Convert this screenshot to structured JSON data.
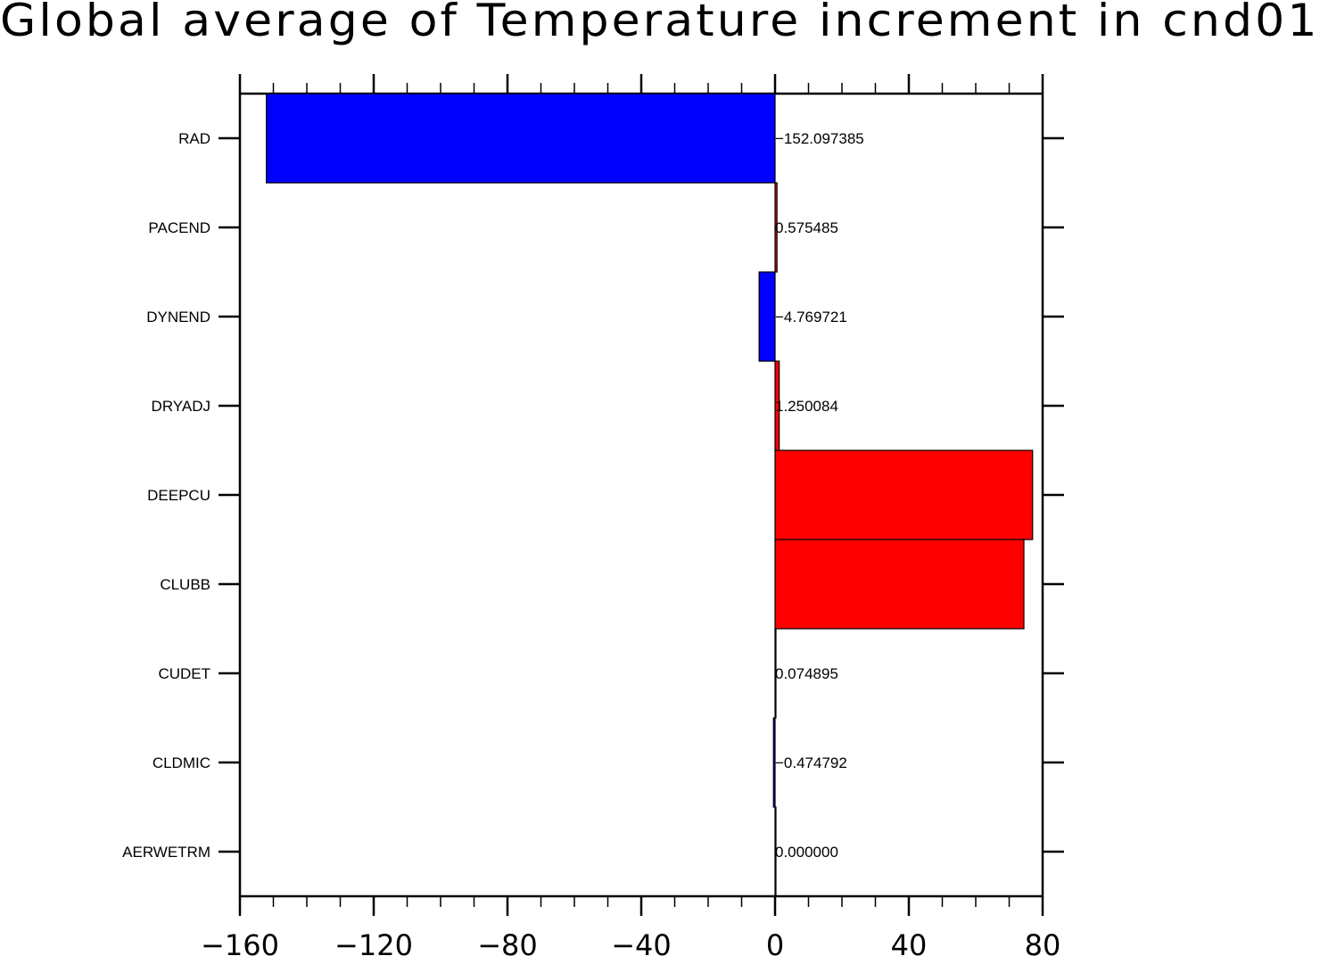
{
  "chart_data": {
    "type": "bar",
    "orientation": "horizontal",
    "title": "Global average of Temperature increment in cnd01",
    "xlabel": "",
    "ylabel": "",
    "xlim": [
      -160,
      80
    ],
    "xticks": [
      -160,
      -120,
      -80,
      -40,
      0,
      40,
      80
    ],
    "xtick_labels": [
      "−160",
      "−120",
      "−80",
      "−40",
      "0",
      "40",
      "80"
    ],
    "grid": false,
    "legend": "none",
    "categories": [
      "RAD",
      "PACEND",
      "DYNEND",
      "DRYADJ",
      "DEEPCU",
      "CLUBB",
      "CUDET",
      "CLDMIC",
      "AERWETRM"
    ],
    "values": [
      -152.097385,
      0.575485,
      -4.769721,
      1.250084,
      77.0,
      74.4,
      0.074895,
      -0.474792,
      0.0
    ],
    "value_labels": [
      "−152.097385",
      "0.575485",
      "−4.769721",
      "1.250084",
      "",
      "",
      "0.074895",
      "−0.474792",
      "0.000000"
    ],
    "colors": {
      "positive": "#ff0000",
      "negative": "#0000ff",
      "outline": "#000000"
    }
  }
}
